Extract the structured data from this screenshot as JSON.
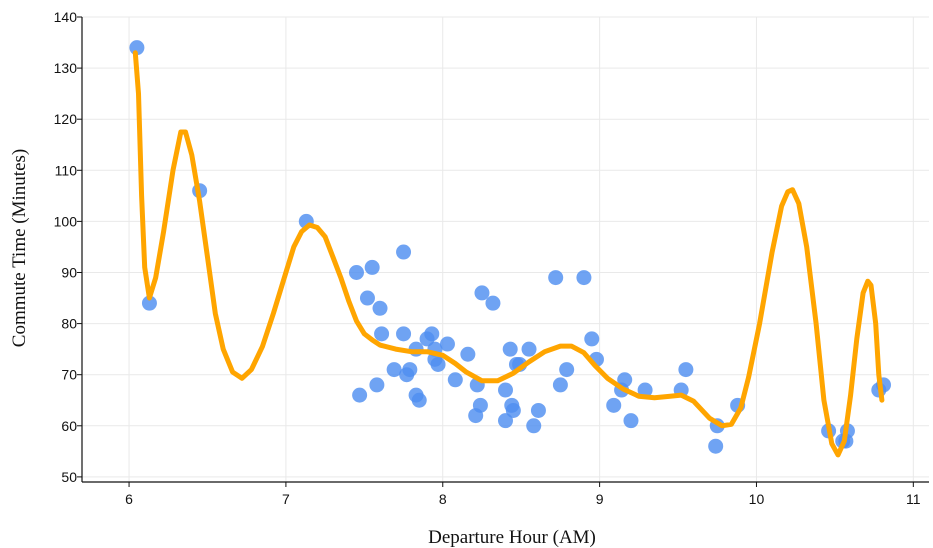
{
  "chart_data": {
    "type": "scatter",
    "title": "",
    "xlabel": "Departure Hour (AM)",
    "ylabel": "Commute Time (Minutes)",
    "xlim": [
      5.7,
      11.1
    ],
    "ylim": [
      49,
      140
    ],
    "x_ticks": [
      6,
      7,
      8,
      9,
      10,
      11
    ],
    "y_ticks": [
      50,
      60,
      70,
      80,
      90,
      100,
      110,
      120,
      130,
      140
    ],
    "grid": true,
    "legend": "none",
    "colors": {
      "points": "#4f8ff0",
      "trend": "#ffa500"
    },
    "series": [
      {
        "type": "scatter",
        "points": [
          [
            6.05,
            134
          ],
          [
            6.13,
            84
          ],
          [
            6.45,
            106
          ],
          [
            7.13,
            100
          ],
          [
            7.45,
            90
          ],
          [
            7.47,
            66
          ],
          [
            7.52,
            85
          ],
          [
            7.55,
            91
          ],
          [
            7.58,
            68
          ],
          [
            7.6,
            83
          ],
          [
            7.61,
            78
          ],
          [
            7.69,
            71
          ],
          [
            7.75,
            94
          ],
          [
            7.75,
            78
          ],
          [
            7.77,
            70
          ],
          [
            7.79,
            71
          ],
          [
            7.83,
            75
          ],
          [
            7.83,
            66
          ],
          [
            7.85,
            65
          ],
          [
            7.9,
            77
          ],
          [
            7.93,
            78
          ],
          [
            7.95,
            73
          ],
          [
            7.95,
            75
          ],
          [
            7.97,
            72
          ],
          [
            8.03,
            76
          ],
          [
            8.08,
            69
          ],
          [
            8.16,
            74
          ],
          [
            8.21,
            62
          ],
          [
            8.22,
            68
          ],
          [
            8.24,
            64
          ],
          [
            8.25,
            86
          ],
          [
            8.32,
            84
          ],
          [
            8.4,
            61
          ],
          [
            8.4,
            67
          ],
          [
            8.43,
            75
          ],
          [
            8.44,
            64
          ],
          [
            8.45,
            63
          ],
          [
            8.47,
            72
          ],
          [
            8.49,
            72
          ],
          [
            8.55,
            75
          ],
          [
            8.58,
            60
          ],
          [
            8.61,
            63
          ],
          [
            8.72,
            89
          ],
          [
            8.75,
            68
          ],
          [
            8.79,
            71
          ],
          [
            8.9,
            89
          ],
          [
            8.95,
            77
          ],
          [
            8.98,
            73
          ],
          [
            9.09,
            64
          ],
          [
            9.14,
            67
          ],
          [
            9.16,
            69
          ],
          [
            9.2,
            61
          ],
          [
            9.29,
            67
          ],
          [
            9.52,
            67
          ],
          [
            9.55,
            71
          ],
          [
            9.74,
            56
          ],
          [
            9.75,
            60
          ],
          [
            9.88,
            64
          ],
          [
            10.46,
            59
          ],
          [
            10.55,
            57
          ],
          [
            10.57,
            57
          ],
          [
            10.58,
            59
          ],
          [
            10.78,
            67
          ],
          [
            10.81,
            68
          ]
        ]
      },
      {
        "type": "line",
        "points": [
          [
            6.04,
            133
          ],
          [
            6.06,
            125
          ],
          [
            6.08,
            105
          ],
          [
            6.1,
            91
          ],
          [
            6.13,
            85
          ],
          [
            6.17,
            89
          ],
          [
            6.22,
            98
          ],
          [
            6.28,
            110
          ],
          [
            6.33,
            117.5
          ],
          [
            6.36,
            117.5
          ],
          [
            6.4,
            113
          ],
          [
            6.45,
            104
          ],
          [
            6.5,
            93
          ],
          [
            6.55,
            82
          ],
          [
            6.6,
            75
          ],
          [
            6.66,
            70.5
          ],
          [
            6.72,
            69.3
          ],
          [
            6.78,
            71
          ],
          [
            6.85,
            75.5
          ],
          [
            6.92,
            82
          ],
          [
            7.0,
            90
          ],
          [
            7.05,
            95
          ],
          [
            7.1,
            98
          ],
          [
            7.15,
            99.3
          ],
          [
            7.2,
            98.8
          ],
          [
            7.25,
            97
          ],
          [
            7.3,
            93
          ],
          [
            7.35,
            89
          ],
          [
            7.4,
            84.5
          ],
          [
            7.45,
            80.5
          ],
          [
            7.5,
            78
          ],
          [
            7.55,
            76.8
          ],
          [
            7.6,
            75.8
          ],
          [
            7.7,
            75
          ],
          [
            7.8,
            74.5
          ],
          [
            7.9,
            74.5
          ],
          [
            8.0,
            73.8
          ],
          [
            8.08,
            72.2
          ],
          [
            8.15,
            70.5
          ],
          [
            8.25,
            68.8
          ],
          [
            8.35,
            68.8
          ],
          [
            8.45,
            70.3
          ],
          [
            8.55,
            72.5
          ],
          [
            8.65,
            74.5
          ],
          [
            8.75,
            75.6
          ],
          [
            8.82,
            75.6
          ],
          [
            8.9,
            74.3
          ],
          [
            8.97,
            71.8
          ],
          [
            9.05,
            69.3
          ],
          [
            9.15,
            67.2
          ],
          [
            9.25,
            65.8
          ],
          [
            9.35,
            65.5
          ],
          [
            9.45,
            65.8
          ],
          [
            9.52,
            66
          ],
          [
            9.6,
            64.8
          ],
          [
            9.7,
            61.5
          ],
          [
            9.78,
            60
          ],
          [
            9.84,
            60.3
          ],
          [
            9.9,
            63.5
          ],
          [
            9.95,
            69.5
          ],
          [
            10.02,
            80
          ],
          [
            10.1,
            94
          ],
          [
            10.16,
            103
          ],
          [
            10.2,
            105.8
          ],
          [
            10.23,
            106.2
          ],
          [
            10.27,
            103.5
          ],
          [
            10.32,
            95
          ],
          [
            10.38,
            80
          ],
          [
            10.43,
            65
          ],
          [
            10.48,
            56.5
          ],
          [
            10.52,
            54.3
          ],
          [
            10.56,
            57
          ],
          [
            10.6,
            66
          ],
          [
            10.64,
            77
          ],
          [
            10.68,
            86
          ],
          [
            10.71,
            88.3
          ],
          [
            10.73,
            87.5
          ],
          [
            10.76,
            80
          ],
          [
            10.78,
            70
          ],
          [
            10.8,
            65
          ]
        ]
      }
    ]
  }
}
